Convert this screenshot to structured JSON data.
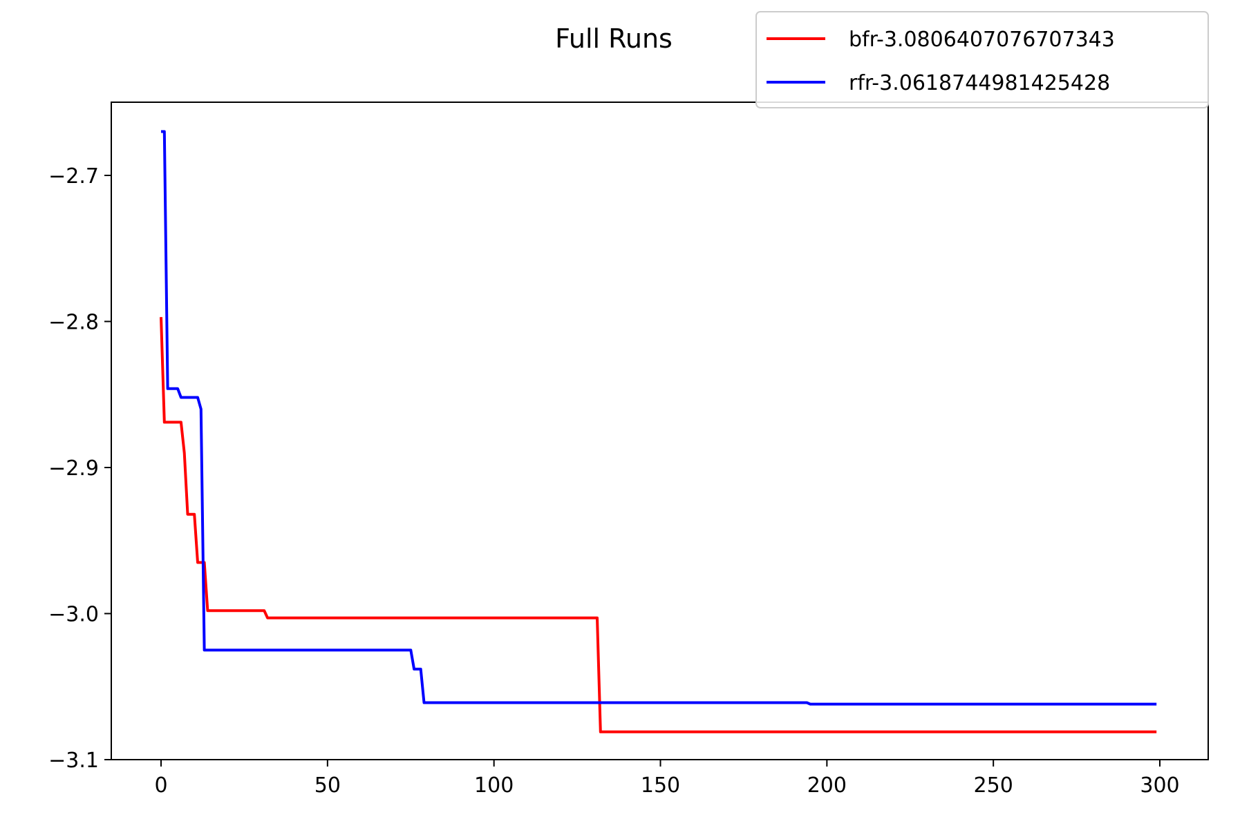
{
  "chart_data": {
    "type": "line",
    "title": "Full Runs",
    "xlabel": "",
    "ylabel": "",
    "xlim": [
      -15,
      315
    ],
    "ylim": [
      -3.1,
      -2.65
    ],
    "xticks": [
      0,
      50,
      100,
      150,
      200,
      250,
      300
    ],
    "yticks": [
      -2.7,
      -2.8,
      -2.9,
      -3.0,
      -3.1
    ],
    "xtick_labels": [
      "0",
      "50",
      "100",
      "150",
      "200",
      "250",
      "300"
    ],
    "ytick_labels": [
      "−2.7",
      "−2.8",
      "−2.9",
      "−3.0",
      "−3.1"
    ],
    "grid": false,
    "legend_position": "top-right",
    "series": [
      {
        "name": "bfr-3.0806407076707343",
        "color": "#ff0000",
        "points": [
          [
            0,
            -2.797
          ],
          [
            1,
            -2.869
          ],
          [
            6,
            -2.869
          ],
          [
            7,
            -2.89
          ],
          [
            8,
            -2.932
          ],
          [
            10,
            -2.932
          ],
          [
            11,
            -2.965
          ],
          [
            13,
            -2.965
          ],
          [
            14,
            -2.998
          ],
          [
            31,
            -2.998
          ],
          [
            32,
            -3.003
          ],
          [
            131,
            -3.003
          ],
          [
            132,
            -3.081
          ],
          [
            299,
            -3.081
          ]
        ]
      },
      {
        "name": "rfr-3.0618744981425428",
        "color": "#0000ff",
        "points": [
          [
            0,
            -2.67
          ],
          [
            1,
            -2.67
          ],
          [
            2,
            -2.846
          ],
          [
            5,
            -2.846
          ],
          [
            6,
            -2.852
          ],
          [
            11,
            -2.852
          ],
          [
            12,
            -2.86
          ],
          [
            13,
            -3.025
          ],
          [
            75,
            -3.025
          ],
          [
            76,
            -3.038
          ],
          [
            78,
            -3.038
          ],
          [
            79,
            -3.061
          ],
          [
            194,
            -3.061
          ],
          [
            195,
            -3.062
          ],
          [
            299,
            -3.062
          ]
        ]
      }
    ]
  }
}
